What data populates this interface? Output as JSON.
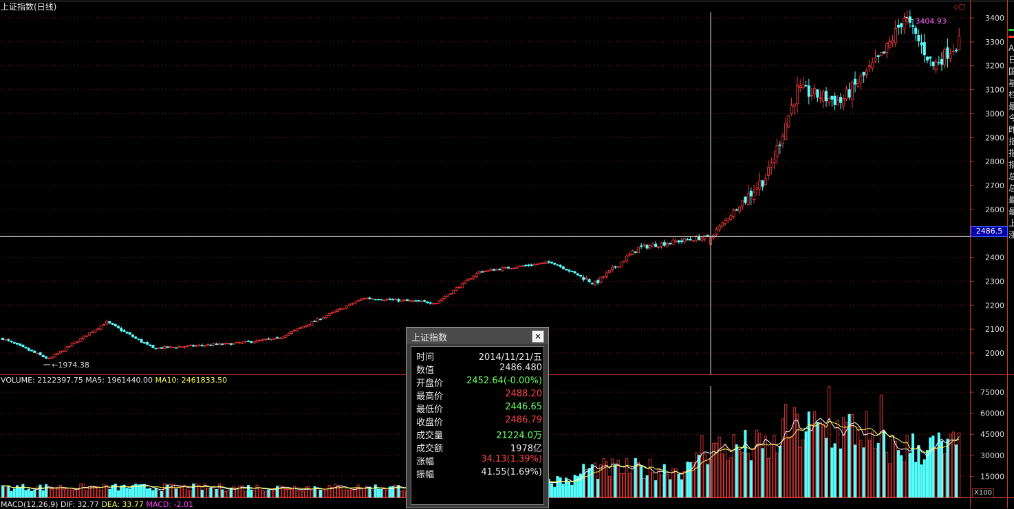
{
  "window": {
    "title": "上证指数(日线)",
    "window_icons": "◇□"
  },
  "price_panel": {
    "y_ticks": [
      "3400",
      "3300",
      "3200",
      "3100",
      "3000",
      "2900",
      "2800",
      "2700",
      "2600",
      "2500",
      "2400",
      "2300",
      "2200",
      "2100",
      "2000"
    ],
    "crosshair_price": "2486.5",
    "high_marker": "3404.93",
    "low_marker": "1974.38"
  },
  "volume_panel": {
    "label_volume": "VOLUME: 2122397.75",
    "label_ma5": "MA5: 1961440.00",
    "label_ma10": "MA10: 2461833.50",
    "y_ticks": [
      "75000",
      "60000",
      "45000",
      "30000",
      "15000"
    ],
    "unit_label": "X100"
  },
  "macd_panel": {
    "label_name": "MACD(12,26,9)",
    "label_dif": "DIF: 32.77",
    "label_dea": "DEA: 33.77",
    "label_macd": "MACD: -2.01"
  },
  "right_edge_text": "A日国基栏最今昨指指指总总最最上涨",
  "colors": {
    "up": "#ff3b3b",
    "down": "#54ffff",
    "grid": "#8b1a1a",
    "axis": "#c0392b",
    "bg": "#000000"
  },
  "info_dialog": {
    "title": "上证指数",
    "close_icon": "close-icon",
    "rows": [
      {
        "label": "时间",
        "value": "2014/11/21/五"
      },
      {
        "label": "数值",
        "value": "2486.480"
      },
      {
        "label": "开盘价",
        "value": "2452.64(-0.00%)"
      },
      {
        "label": "最高价",
        "value": "2488.20"
      },
      {
        "label": "最低价",
        "value": "2446.65"
      },
      {
        "label": "收盘价",
        "value": "2486.79"
      },
      {
        "label": "成交量",
        "value": "21224.0万"
      },
      {
        "label": "成交额",
        "value": "1978亿"
      },
      {
        "label": "涨幅",
        "value": "34.13(1.39%)"
      },
      {
        "label": "振幅",
        "value": "41.55(1.69%)"
      }
    ]
  },
  "chart_data": {
    "type": "candlestick",
    "title": "上证指数(日线)",
    "price_range": [
      1950,
      3450
    ],
    "volume_range": [
      0,
      85000
    ],
    "key_points": [
      {
        "i": 0,
        "close": 2060
      },
      {
        "i": 16,
        "close": 1974.38
      },
      {
        "i": 36,
        "close": 2130
      },
      {
        "i": 52,
        "close": 2020
      },
      {
        "i": 80,
        "close": 2040
      },
      {
        "i": 95,
        "close": 2060
      },
      {
        "i": 125,
        "close": 2230
      },
      {
        "i": 150,
        "close": 2210
      },
      {
        "i": 165,
        "close": 2340
      },
      {
        "i": 190,
        "close": 2380
      },
      {
        "i": 205,
        "close": 2290
      },
      {
        "i": 220,
        "close": 2440
      },
      {
        "i": 235,
        "close": 2470
      },
      {
        "i": 245,
        "close": 2486.79
      },
      {
        "i": 265,
        "close": 2750
      },
      {
        "i": 275,
        "close": 3100
      },
      {
        "i": 290,
        "close": 3050
      },
      {
        "i": 305,
        "close": 3250
      },
      {
        "i": 312,
        "close": 3404.93
      },
      {
        "i": 322,
        "close": 3200
      },
      {
        "i": 331,
        "close": 3300
      }
    ]
  }
}
